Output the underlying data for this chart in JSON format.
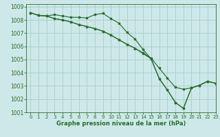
{
  "title": "Graphe pression niveau de la mer (hPa)",
  "bg_color": "#cce8e8",
  "grid_color": "#aacccc",
  "line_color": "#2d6b2d",
  "xlim": [
    -0.5,
    23
  ],
  "ylim": [
    1001,
    1009.2
  ],
  "xticks": [
    0,
    1,
    2,
    3,
    4,
    5,
    6,
    7,
    8,
    9,
    10,
    11,
    12,
    13,
    14,
    15,
    16,
    17,
    18,
    19,
    20,
    21,
    22,
    23
  ],
  "yticks": [
    1001,
    1002,
    1003,
    1004,
    1005,
    1006,
    1007,
    1008,
    1009
  ],
  "line1": [
    [
      0,
      1008.55
    ],
    [
      1,
      1008.35
    ],
    [
      2,
      1008.3
    ],
    [
      3,
      1008.4
    ],
    [
      4,
      1008.3
    ],
    [
      5,
      1008.2
    ],
    [
      6,
      1008.2
    ],
    [
      7,
      1008.15
    ],
    [
      8,
      1008.4
    ],
    [
      9,
      1008.5
    ],
    [
      10,
      1008.1
    ],
    [
      11,
      1007.75
    ],
    [
      12,
      1007.05
    ],
    [
      13,
      1006.55
    ],
    [
      14,
      1005.75
    ],
    [
      15,
      1005.05
    ],
    [
      16,
      1003.55
    ],
    [
      17,
      1002.7
    ],
    [
      18,
      1001.75
    ],
    [
      19,
      1001.3
    ],
    [
      20,
      1002.85
    ],
    [
      21,
      1003.05
    ],
    [
      22,
      1003.35
    ],
    [
      23,
      1003.2
    ]
  ],
  "line2": [
    [
      0,
      1008.55
    ],
    [
      1,
      1008.35
    ],
    [
      2,
      1008.3
    ],
    [
      3,
      1008.1
    ],
    [
      4,
      1008.0
    ],
    [
      5,
      1007.85
    ],
    [
      6,
      1007.65
    ],
    [
      7,
      1007.5
    ],
    [
      8,
      1007.35
    ],
    [
      9,
      1007.15
    ],
    [
      10,
      1006.85
    ],
    [
      11,
      1006.5
    ],
    [
      12,
      1006.15
    ],
    [
      13,
      1005.85
    ],
    [
      14,
      1005.5
    ],
    [
      15,
      1005.1
    ],
    [
      16,
      1004.35
    ],
    [
      17,
      1003.6
    ],
    [
      18,
      1002.9
    ],
    [
      19,
      1002.75
    ],
    [
      20,
      1002.85
    ],
    [
      21,
      1003.05
    ],
    [
      22,
      1003.35
    ],
    [
      23,
      1003.2
    ]
  ],
  "line3": [
    [
      0,
      1008.55
    ],
    [
      1,
      1008.35
    ],
    [
      2,
      1008.3
    ],
    [
      3,
      1008.1
    ],
    [
      4,
      1008.0
    ],
    [
      5,
      1007.85
    ],
    [
      6,
      1007.65
    ],
    [
      7,
      1007.5
    ],
    [
      8,
      1007.35
    ],
    [
      9,
      1007.15
    ],
    [
      10,
      1006.85
    ],
    [
      11,
      1006.5
    ],
    [
      12,
      1006.15
    ],
    [
      13,
      1005.85
    ],
    [
      14,
      1005.45
    ],
    [
      15,
      1005.05
    ],
    [
      16,
      1003.55
    ],
    [
      17,
      1002.7
    ],
    [
      18,
      1001.75
    ],
    [
      19,
      1001.3
    ],
    [
      20,
      1002.85
    ],
    [
      21,
      1003.05
    ],
    [
      22,
      1003.35
    ],
    [
      23,
      1003.2
    ]
  ]
}
